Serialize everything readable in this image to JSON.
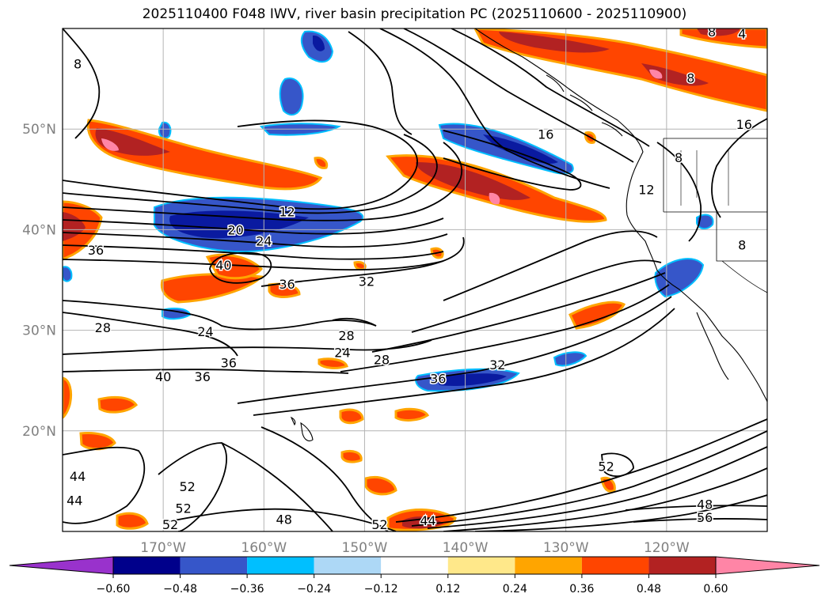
{
  "title": "2025110400 F048 IWV, river basin precipitation PC (2025110600 - 2025110900)",
  "map": {
    "lon_range": [
      -180,
      -110
    ],
    "lat_range": [
      10,
      60
    ],
    "lon_ticks": [
      {
        "value": -170,
        "label": "170°W"
      },
      {
        "value": -160,
        "label": "160°W"
      },
      {
        "value": -150,
        "label": "150°W"
      },
      {
        "value": -140,
        "label": "140°W"
      },
      {
        "value": -130,
        "label": "130°W"
      },
      {
        "value": -120,
        "label": "120°W"
      }
    ],
    "lat_ticks": [
      {
        "value": 20,
        "label": "20°N"
      },
      {
        "value": 30,
        "label": "30°N"
      },
      {
        "value": 40,
        "label": "40°N"
      },
      {
        "value": 50,
        "label": "50°N"
      }
    ],
    "gridlines": true,
    "contour_labels": [
      {
        "text": "8",
        "lon": -178.5,
        "lat": 56.5
      },
      {
        "text": "8",
        "lon": -115.5,
        "lat": 59.7
      },
      {
        "text": "4",
        "lon": -112.5,
        "lat": 59.5
      },
      {
        "text": "8",
        "lon": -117.6,
        "lat": 55.1
      },
      {
        "text": "16",
        "lon": -112.3,
        "lat": 50.5
      },
      {
        "text": "16",
        "lon": -132.0,
        "lat": 49.5
      },
      {
        "text": "12",
        "lon": -122.0,
        "lat": 44.0
      },
      {
        "text": "8",
        "lon": -118.8,
        "lat": 47.2
      },
      {
        "text": "8",
        "lon": -112.5,
        "lat": 38.5
      },
      {
        "text": "12",
        "lon": -157.7,
        "lat": 41.8
      },
      {
        "text": "20",
        "lon": -162.8,
        "lat": 40.0
      },
      {
        "text": "24",
        "lon": -160.0,
        "lat": 38.9
      },
      {
        "text": "36",
        "lon": -176.7,
        "lat": 38.0
      },
      {
        "text": "40",
        "lon": -164.0,
        "lat": 36.5
      },
      {
        "text": "36",
        "lon": -157.7,
        "lat": 34.6
      },
      {
        "text": "32",
        "lon": -149.8,
        "lat": 34.9
      },
      {
        "text": "28",
        "lon": -176.0,
        "lat": 30.3
      },
      {
        "text": "24",
        "lon": -165.8,
        "lat": 29.9
      },
      {
        "text": "28",
        "lon": -151.8,
        "lat": 29.5
      },
      {
        "text": "24",
        "lon": -152.2,
        "lat": 27.8
      },
      {
        "text": "28",
        "lon": -148.3,
        "lat": 27.1
      },
      {
        "text": "36",
        "lon": -163.5,
        "lat": 26.8
      },
      {
        "text": "40",
        "lon": -170.0,
        "lat": 25.4
      },
      {
        "text": "36",
        "lon": -166.1,
        "lat": 25.4
      },
      {
        "text": "32",
        "lon": -136.8,
        "lat": 26.6
      },
      {
        "text": "36",
        "lon": -142.7,
        "lat": 25.2
      },
      {
        "text": "44",
        "lon": -178.5,
        "lat": 15.5
      },
      {
        "text": "44",
        "lon": -178.8,
        "lat": 13.1
      },
      {
        "text": "52",
        "lon": -167.6,
        "lat": 14.5
      },
      {
        "text": "52",
        "lon": -168.0,
        "lat": 12.3
      },
      {
        "text": "52",
        "lon": -169.3,
        "lat": 10.7
      },
      {
        "text": "48",
        "lon": -158.0,
        "lat": 11.2
      },
      {
        "text": "52",
        "lon": -148.5,
        "lat": 10.7
      },
      {
        "text": "44",
        "lon": -143.7,
        "lat": 11.1
      },
      {
        "text": "52",
        "lon": -126.0,
        "lat": 16.5
      },
      {
        "text": "48",
        "lon": -116.2,
        "lat": 12.7
      },
      {
        "text": "56",
        "lon": -116.2,
        "lat": 11.4
      }
    ]
  },
  "colorbar": {
    "levels": [
      -0.6,
      -0.48,
      -0.36,
      -0.24,
      -0.12,
      0.12,
      0.24,
      0.36,
      0.48,
      0.6
    ],
    "tick_labels": [
      "−0.60",
      "−0.48",
      "−0.36",
      "−0.24",
      "−0.12",
      "0.12",
      "0.24",
      "0.36",
      "0.48",
      "0.60"
    ],
    "colors": [
      "#9932cc",
      "#00008b",
      "#3656c9",
      "#00bfff",
      "#add8f6",
      "#ffffff",
      "#ffe88a",
      "#ffa500",
      "#ff4500",
      "#b22222",
      "#ff85a6"
    ],
    "extend": "both"
  },
  "colors": {
    "contour": "#000000",
    "grid": "#b4b4b4",
    "tick_label": "#808080"
  }
}
